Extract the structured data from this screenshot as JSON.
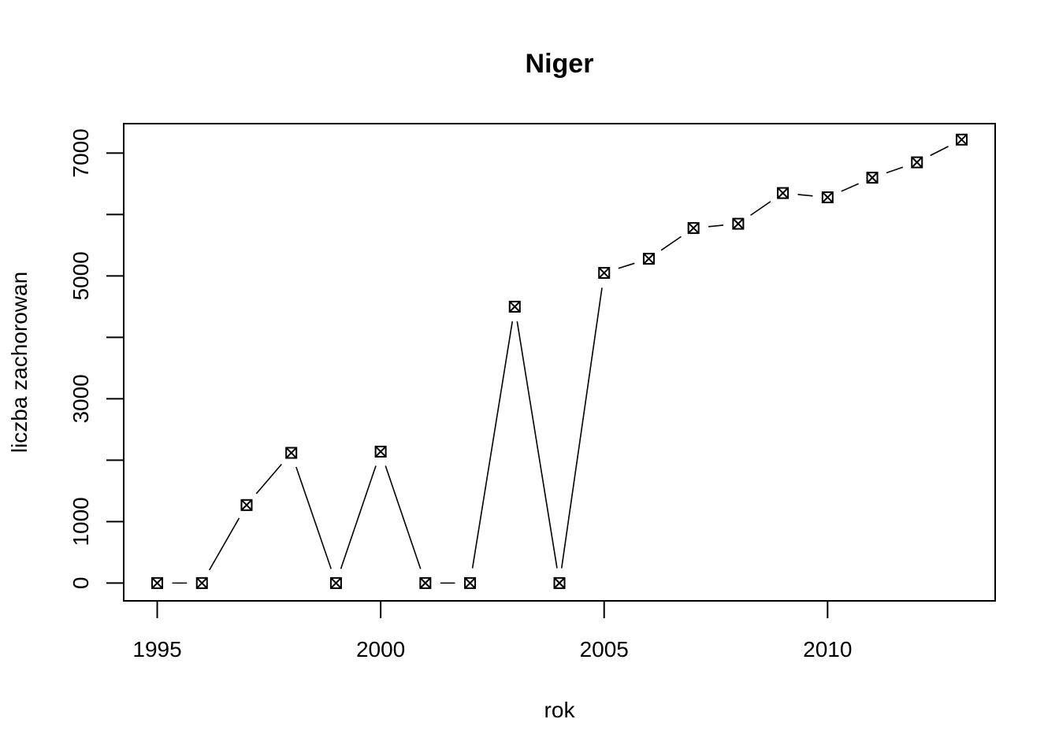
{
  "chart_data": {
    "type": "line",
    "title": "Niger",
    "xlabel": "rok",
    "ylabel": "liczba zachorowan",
    "x": [
      1995,
      1996,
      1997,
      1998,
      1999,
      2000,
      2001,
      2002,
      2003,
      2004,
      2005,
      2006,
      2007,
      2008,
      2009,
      2010,
      2011,
      2012,
      2013
    ],
    "series": [
      {
        "values": [
          0,
          0,
          1270,
          2120,
          0,
          2140,
          0,
          0,
          4500,
          0,
          5050,
          5280,
          5780,
          5850,
          6350,
          6280,
          6600,
          6850,
          7220
        ]
      }
    ],
    "xticks": [
      1995,
      2000,
      2005,
      2010
    ],
    "yticks": [
      0,
      1000,
      3000,
      5000,
      7000
    ],
    "xlim": [
      1994.25,
      2013.75
    ],
    "ylim": [
      -290,
      7480
    ],
    "grid": false,
    "legend": "none",
    "marker": "boxed-x",
    "line_style": "lines between points with gaps at markers"
  }
}
